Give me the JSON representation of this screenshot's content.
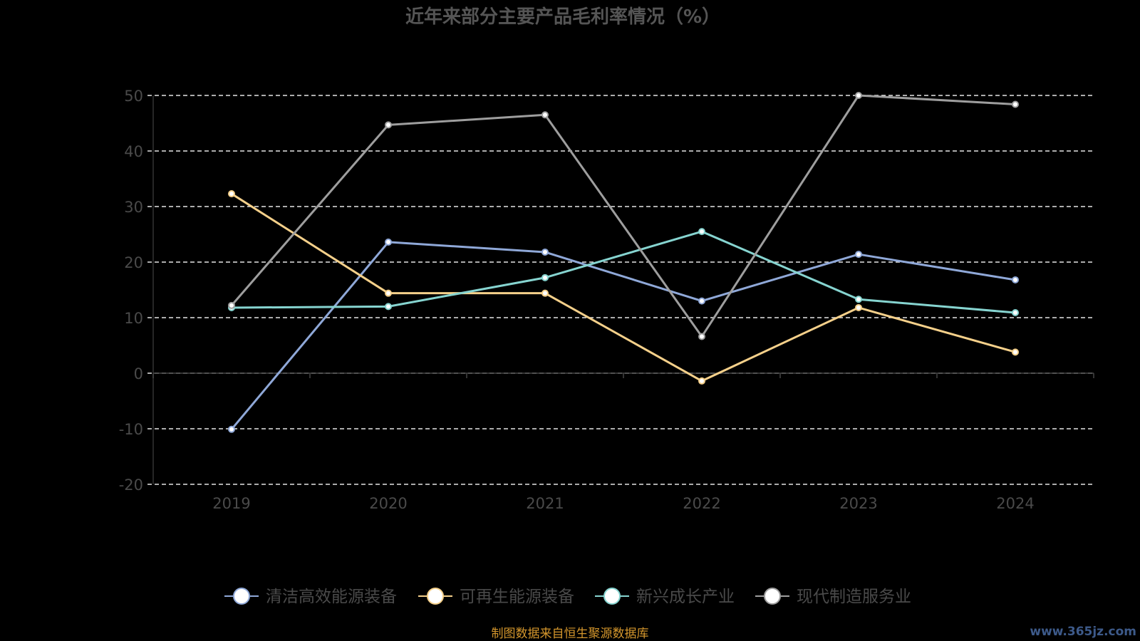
{
  "chart_data": {
    "type": "line",
    "title": "近年来部分主要产品毛利率情况（%）",
    "categories": [
      "2019",
      "2020",
      "2021",
      "2022",
      "2023",
      "2024"
    ],
    "ylim": [
      -20,
      50
    ],
    "yticks": [
      -20,
      -10,
      0,
      10,
      20,
      30,
      40,
      50
    ],
    "grid": true,
    "legend_position": "bottom",
    "series": [
      {
        "name": "清洁高效能源装备",
        "color": "#8fa8d8",
        "values": [
          -10.1,
          23.6,
          21.8,
          13.0,
          21.4,
          16.8
        ]
      },
      {
        "name": "可再生能源装备",
        "color": "#f5d08a",
        "values": [
          32.3,
          14.4,
          14.4,
          -1.4,
          11.8,
          3.8
        ]
      },
      {
        "name": "新兴成长产业",
        "color": "#86d4d0",
        "values": [
          11.8,
          12.0,
          17.2,
          25.5,
          13.3,
          10.9
        ]
      },
      {
        "name": "现代制造服务业",
        "color": "#9e9e9e",
        "values": [
          12.2,
          44.7,
          46.5,
          6.6,
          50.0,
          48.4
        ]
      }
    ]
  },
  "source_text": "制图数据来自恒生聚源数据库",
  "watermark_text": "www.365jz.com"
}
